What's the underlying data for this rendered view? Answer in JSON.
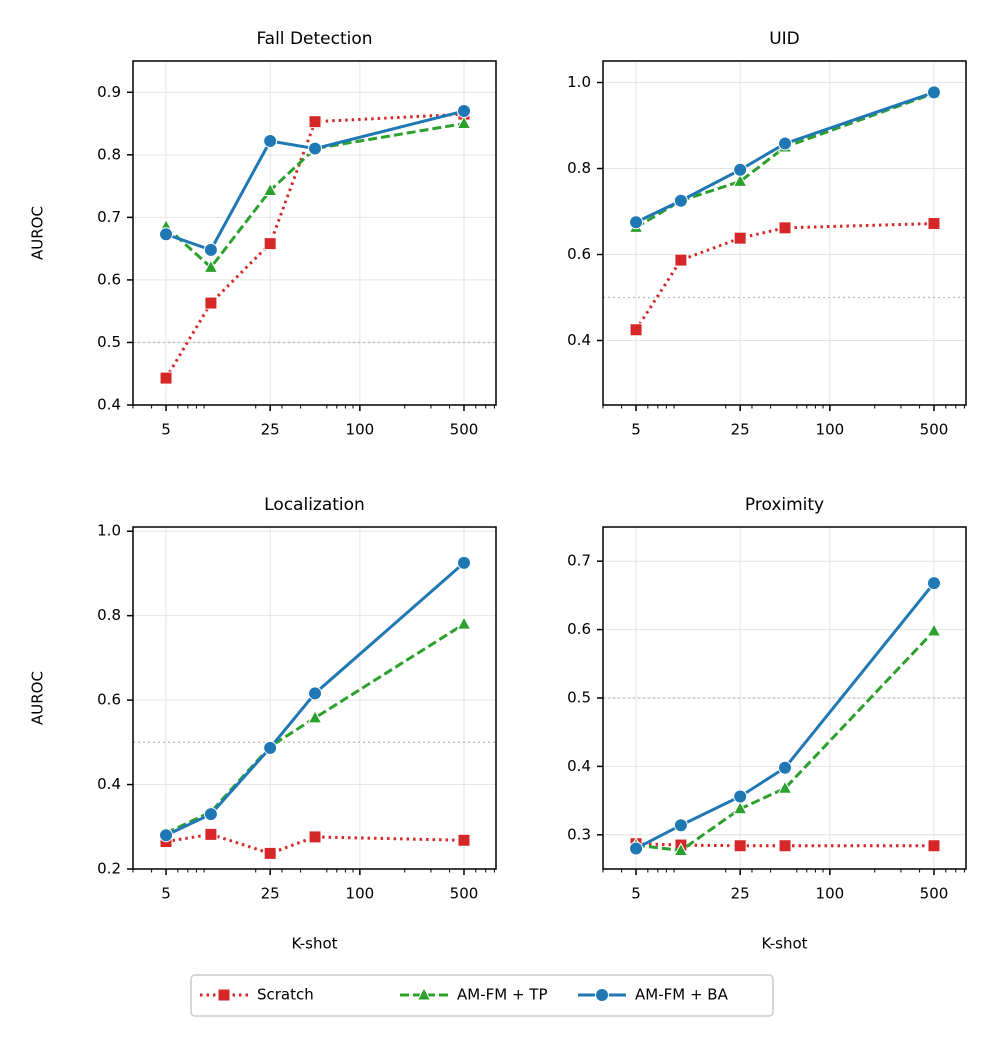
{
  "chart_data": [
    {
      "type": "line",
      "title": "Fall Detection",
      "ylabel": "AUROC",
      "x": [
        5,
        10,
        25,
        50,
        500
      ],
      "xscale": "log",
      "xlim": [
        3,
        820
      ],
      "xticks": [
        5,
        25,
        100,
        500
      ],
      "xminorticks": [
        3,
        4,
        6,
        7,
        8,
        9,
        20,
        30,
        40,
        60,
        70,
        80,
        90,
        200,
        300,
        400,
        600,
        700,
        800
      ],
      "ylim": [
        0.4,
        0.95
      ],
      "yticks": [
        0.4,
        0.5,
        0.6,
        0.7,
        0.8,
        0.9
      ],
      "grid": true,
      "reference_line": 0.5,
      "series": [
        {
          "name": "Scratch",
          "color": "#d62728",
          "marker": "square",
          "linestyle": "dotted",
          "values": [
            0.443,
            0.563,
            0.658,
            0.853,
            0.865
          ]
        },
        {
          "name": "AM-FM + TP",
          "color": "#2ca02c",
          "marker": "triangle",
          "linestyle": "dashed",
          "values": [
            0.685,
            0.62,
            0.743,
            0.81,
            0.85
          ]
        },
        {
          "name": "AM-FM + BA",
          "color": "#1f77b4",
          "marker": "circle",
          "linestyle": "solid",
          "values": [
            0.673,
            0.648,
            0.822,
            0.81,
            0.87
          ]
        }
      ]
    },
    {
      "type": "line",
      "title": "UID",
      "x": [
        5,
        10,
        25,
        50,
        500
      ],
      "xscale": "log",
      "xlim": [
        3,
        820
      ],
      "xticks": [
        5,
        25,
        100,
        500
      ],
      "xminorticks": [
        3,
        4,
        6,
        7,
        8,
        9,
        20,
        30,
        40,
        60,
        70,
        80,
        90,
        200,
        300,
        400,
        600,
        700,
        800
      ],
      "ylim": [
        0.25,
        1.05
      ],
      "yticks": [
        0.4,
        0.6,
        0.8,
        {
          "value": 1,
          "label": "1.0"
        }
      ],
      "grid": true,
      "reference_line": 0.5,
      "series": [
        {
          "name": "Scratch",
          "color": "#d62728",
          "marker": "square",
          "linestyle": "dotted",
          "values": [
            0.425,
            0.587,
            0.638,
            0.662,
            0.672
          ]
        },
        {
          "name": "AM-FM + TP",
          "color": "#2ca02c",
          "marker": "triangle",
          "linestyle": "dashed",
          "values": [
            0.663,
            0.725,
            0.77,
            0.85,
            0.975
          ]
        },
        {
          "name": "AM-FM + BA",
          "color": "#1f77b4",
          "marker": "circle",
          "linestyle": "solid",
          "values": [
            0.675,
            0.725,
            0.797,
            0.858,
            0.977
          ]
        }
      ]
    },
    {
      "type": "line",
      "title": "Localization",
      "ylabel": "AUROC",
      "xlabel": "K-shot",
      "x": [
        5,
        10,
        25,
        50,
        500
      ],
      "xscale": "log",
      "xlim": [
        3,
        820
      ],
      "xticks": [
        5,
        25,
        100,
        500
      ],
      "xminorticks": [
        3,
        4,
        6,
        7,
        8,
        9,
        20,
        30,
        40,
        60,
        70,
        80,
        90,
        200,
        300,
        400,
        600,
        700,
        800
      ],
      "ylim": [
        0.2,
        1.01
      ],
      "yticks": [
        0.2,
        0.4,
        0.6,
        0.8,
        {
          "value": 1,
          "label": "1.0"
        }
      ],
      "grid": true,
      "reference_line": 0.5,
      "series": [
        {
          "name": "Scratch",
          "color": "#d62728",
          "marker": "square",
          "linestyle": "dotted",
          "values": [
            0.265,
            0.282,
            0.237,
            0.276,
            0.268
          ]
        },
        {
          "name": "AM-FM + TP",
          "color": "#2ca02c",
          "marker": "triangle",
          "linestyle": "dashed",
          "values": [
            0.285,
            0.335,
            0.49,
            0.558,
            0.78
          ]
        },
        {
          "name": "AM-FM + BA",
          "color": "#1f77b4",
          "marker": "circle",
          "linestyle": "solid",
          "values": [
            0.28,
            0.33,
            0.487,
            0.616,
            0.925
          ]
        }
      ]
    },
    {
      "type": "line",
      "title": "Proximity",
      "xlabel": "K-shot",
      "x": [
        5,
        10,
        25,
        50,
        500
      ],
      "xscale": "log",
      "xlim": [
        3,
        820
      ],
      "xticks": [
        5,
        25,
        100,
        500
      ],
      "xminorticks": [
        3,
        4,
        6,
        7,
        8,
        9,
        20,
        30,
        40,
        60,
        70,
        80,
        90,
        200,
        300,
        400,
        600,
        700,
        800
      ],
      "ylim": [
        0.25,
        0.75
      ],
      "yticks": [
        0.3,
        0.4,
        0.5,
        0.6,
        0.7
      ],
      "grid": true,
      "reference_line": 0.5,
      "series": [
        {
          "name": "Scratch",
          "color": "#d62728",
          "marker": "square",
          "linestyle": "dotted",
          "values": [
            0.287,
            0.285,
            0.284,
            0.284,
            0.284
          ]
        },
        {
          "name": "AM-FM + TP",
          "color": "#2ca02c",
          "marker": "triangle",
          "linestyle": "dashed",
          "values": [
            0.285,
            0.277,
            0.338,
            0.368,
            0.598
          ]
        },
        {
          "name": "AM-FM + BA",
          "color": "#1f77b4",
          "marker": "circle",
          "linestyle": "solid",
          "values": [
            0.28,
            0.314,
            0.356,
            0.398,
            0.668
          ]
        }
      ]
    }
  ]
}
